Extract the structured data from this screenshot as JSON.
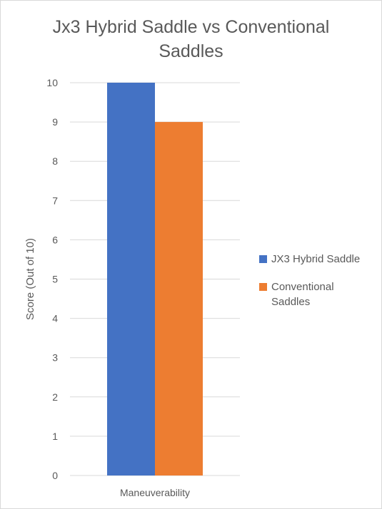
{
  "chart_data": {
    "type": "bar",
    "title_lines": [
      "Jx3 Hybrid Saddle vs Conventional",
      "Saddles"
    ],
    "categories": [
      "Maneuverability"
    ],
    "series": [
      {
        "name": "JX3 Hybrid Saddle",
        "values": [
          10
        ],
        "color": "#4472c4"
      },
      {
        "name": "Conventional Saddles",
        "values": [
          9
        ],
        "color": "#ed7d31"
      }
    ],
    "ylabel": "Score (Out of 10)",
    "ylim": [
      0,
      10
    ],
    "yticks": [
      "0",
      "1",
      "2",
      "3",
      "4",
      "5",
      "6",
      "7",
      "8",
      "9",
      "10"
    ],
    "grid": true,
    "legend_position": "right"
  },
  "legend_items": [
    {
      "lines": [
        "JX3 Hybrid Saddle"
      ],
      "color": "#4472c4"
    },
    {
      "lines": [
        "Conventional",
        "Saddles"
      ],
      "color": "#ed7d31"
    }
  ]
}
